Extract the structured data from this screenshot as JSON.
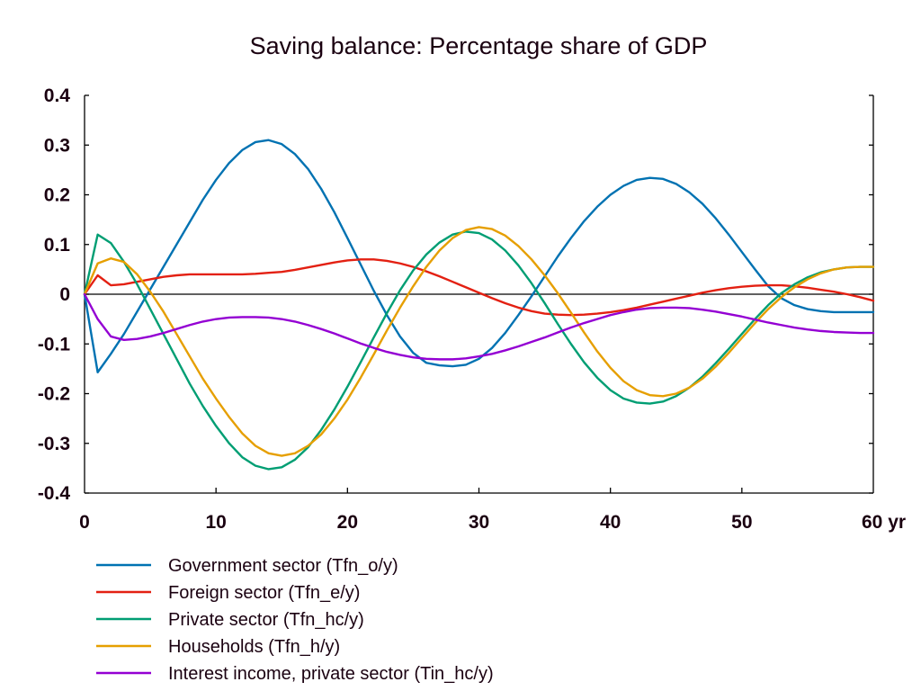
{
  "chart_data": {
    "type": "line",
    "title": "Saving balance: Percentage share of GDP",
    "xlabel": "yr",
    "ylabel": "",
    "xlim": [
      0,
      60
    ],
    "ylim": [
      -0.4,
      0.4
    ],
    "xticks": [
      0,
      10,
      20,
      30,
      40,
      50,
      60
    ],
    "xtick_labels": [
      "0",
      "10",
      "20",
      "30",
      "40",
      "50",
      "60 yr"
    ],
    "yticks": [
      0.4,
      0.3,
      0.2,
      0.1,
      0,
      -0.1,
      -0.2,
      -0.3,
      -0.4
    ],
    "ytick_labels": [
      "0.4",
      "0.3",
      "0.2",
      "0.1",
      "0",
      "-0.1",
      "-0.2",
      "-0.3",
      "-0.4"
    ],
    "grid": false,
    "zero_line": true,
    "legend_position": "bottom",
    "x": [
      0,
      1,
      2,
      3,
      4,
      5,
      6,
      7,
      8,
      9,
      10,
      11,
      12,
      13,
      14,
      15,
      16,
      17,
      18,
      19,
      20,
      21,
      22,
      23,
      24,
      25,
      26,
      27,
      28,
      29,
      30,
      31,
      32,
      33,
      34,
      35,
      36,
      37,
      38,
      39,
      40,
      41,
      42,
      43,
      44,
      45,
      46,
      47,
      48,
      49,
      50,
      51,
      52,
      53,
      54,
      55,
      56,
      57,
      58,
      59,
      60
    ],
    "series": [
      {
        "name": "Government sector (Tfn_o/y)",
        "color": "#0072b2",
        "values": [
          0,
          -0.157,
          -0.12,
          -0.08,
          -0.035,
          0.01,
          0.055,
          0.1,
          0.145,
          0.19,
          0.23,
          0.264,
          0.29,
          0.306,
          0.31,
          0.302,
          0.282,
          0.252,
          0.212,
          0.165,
          0.113,
          0.06,
          0.007,
          -0.042,
          -0.085,
          -0.118,
          -0.138,
          -0.143,
          -0.145,
          -0.142,
          -0.13,
          -0.108,
          -0.078,
          -0.042,
          -0.004,
          0.036,
          0.076,
          0.113,
          0.147,
          0.176,
          0.2,
          0.218,
          0.23,
          0.234,
          0.232,
          0.222,
          0.205,
          0.182,
          0.153,
          0.12,
          0.085,
          0.05,
          0.016,
          -0.008,
          -0.022,
          -0.03,
          -0.034,
          -0.036,
          -0.036,
          -0.036,
          -0.036
        ]
      },
      {
        "name": "Foreign sector (Tfn_e/y)",
        "color": "#e32012",
        "values": [
          0,
          0.038,
          0.018,
          0.02,
          0.025,
          0.03,
          0.035,
          0.038,
          0.04,
          0.04,
          0.04,
          0.04,
          0.04,
          0.041,
          0.043,
          0.045,
          0.049,
          0.054,
          0.059,
          0.064,
          0.068,
          0.07,
          0.07,
          0.067,
          0.062,
          0.055,
          0.046,
          0.036,
          0.025,
          0.014,
          0.003,
          -0.008,
          -0.018,
          -0.027,
          -0.034,
          -0.039,
          -0.041,
          -0.042,
          -0.041,
          -0.039,
          -0.036,
          -0.032,
          -0.027,
          -0.021,
          -0.015,
          -0.009,
          -0.003,
          0.003,
          0.008,
          0.012,
          0.015,
          0.017,
          0.018,
          0.018,
          0.016,
          0.013,
          0.009,
          0.005,
          0,
          -0.006,
          -0.013
        ]
      },
      {
        "name": "Private sector (Tfn_hc/y)",
        "color": "#009e73",
        "values": [
          0,
          0.12,
          0.103,
          0.065,
          0.02,
          -0.03,
          -0.08,
          -0.13,
          -0.18,
          -0.225,
          -0.265,
          -0.3,
          -0.328,
          -0.345,
          -0.352,
          -0.348,
          -0.333,
          -0.308,
          -0.273,
          -0.232,
          -0.186,
          -0.137,
          -0.087,
          -0.038,
          0.008,
          0.048,
          0.08,
          0.104,
          0.12,
          0.126,
          0.123,
          0.11,
          0.088,
          0.058,
          0.022,
          -0.018,
          -0.06,
          -0.1,
          -0.137,
          -0.168,
          -0.193,
          -0.21,
          -0.218,
          -0.22,
          -0.216,
          -0.205,
          -0.188,
          -0.166,
          -0.139,
          -0.11,
          -0.08,
          -0.05,
          -0.022,
          0.002,
          0.02,
          0.034,
          0.044,
          0.05,
          0.054,
          0.055,
          0.055
        ]
      },
      {
        "name": "Households (Tfn_h/y)",
        "color": "#e69f00",
        "values": [
          0,
          0.062,
          0.072,
          0.065,
          0.04,
          0.005,
          -0.035,
          -0.08,
          -0.125,
          -0.17,
          -0.21,
          -0.247,
          -0.28,
          -0.305,
          -0.32,
          -0.325,
          -0.32,
          -0.305,
          -0.282,
          -0.25,
          -0.212,
          -0.168,
          -0.121,
          -0.073,
          -0.027,
          0.016,
          0.055,
          0.088,
          0.113,
          0.129,
          0.135,
          0.131,
          0.118,
          0.097,
          0.07,
          0.038,
          0.002,
          -0.037,
          -0.077,
          -0.115,
          -0.148,
          -0.175,
          -0.193,
          -0.203,
          -0.205,
          -0.2,
          -0.188,
          -0.17,
          -0.146,
          -0.118,
          -0.088,
          -0.058,
          -0.03,
          -0.006,
          0.014,
          0.03,
          0.042,
          0.05,
          0.054,
          0.055,
          0.055
        ]
      },
      {
        "name": "Interest income, private sector (Tin_hc/y)",
        "color": "#9400d3",
        "values": [
          0,
          -0.05,
          -0.085,
          -0.092,
          -0.09,
          -0.085,
          -0.078,
          -0.07,
          -0.062,
          -0.055,
          -0.05,
          -0.047,
          -0.046,
          -0.046,
          -0.047,
          -0.05,
          -0.055,
          -0.062,
          -0.07,
          -0.079,
          -0.089,
          -0.099,
          -0.108,
          -0.116,
          -0.122,
          -0.127,
          -0.13,
          -0.131,
          -0.131,
          -0.129,
          -0.125,
          -0.12,
          -0.113,
          -0.105,
          -0.096,
          -0.087,
          -0.077,
          -0.067,
          -0.058,
          -0.05,
          -0.042,
          -0.036,
          -0.031,
          -0.028,
          -0.027,
          -0.027,
          -0.028,
          -0.031,
          -0.035,
          -0.04,
          -0.045,
          -0.051,
          -0.057,
          -0.062,
          -0.067,
          -0.071,
          -0.074,
          -0.076,
          -0.077,
          -0.078,
          -0.078
        ]
      }
    ]
  }
}
